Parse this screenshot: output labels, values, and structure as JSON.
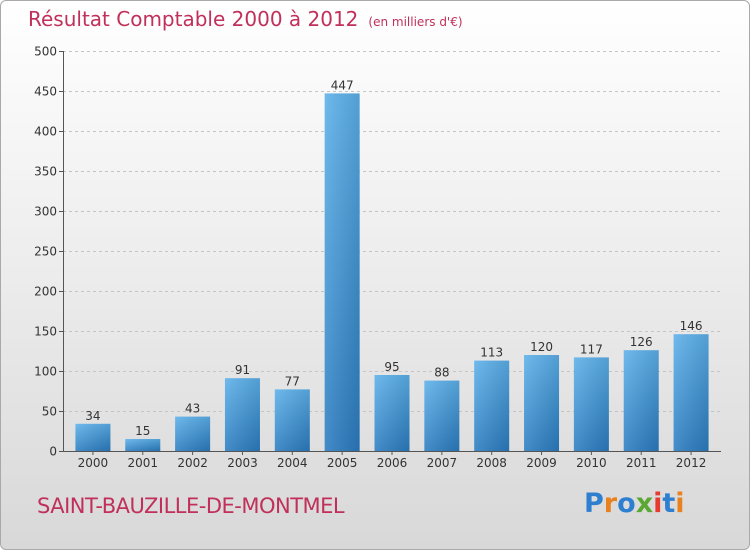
{
  "header": {
    "title": "Résultat Comptable 2000 à 2012",
    "subtitle": "(en milliers d'€)"
  },
  "footer": {
    "place": "SAINT-BAUZILLE-DE-MONTMEL",
    "logo_text": "Proxiti",
    "logo_colors": [
      "#2f7fd0",
      "#e8821e",
      "#2f7fd0",
      "#5aa832",
      "#e53c2e",
      "#2f7fd0",
      "#e8821e"
    ]
  },
  "colors": {
    "bar_top": "#5cb0ea",
    "bar_bottom": "#2b7cc0",
    "accent": "#c0305a"
  },
  "chart_data": {
    "type": "bar",
    "title": "Résultat Comptable 2000 à 2012",
    "subtitle": "(en milliers d'€)",
    "categories": [
      "2000",
      "2001",
      "2002",
      "2003",
      "2004",
      "2005",
      "2006",
      "2007",
      "2008",
      "2009",
      "2010",
      "2011",
      "2012"
    ],
    "values": [
      34,
      15,
      43,
      91,
      77,
      447,
      95,
      88,
      113,
      120,
      117,
      126,
      146
    ],
    "ylim": [
      0,
      500
    ],
    "yticks": [
      0,
      50,
      100,
      150,
      200,
      250,
      300,
      350,
      400,
      450,
      500
    ],
    "grid": true,
    "data_labels": true
  }
}
